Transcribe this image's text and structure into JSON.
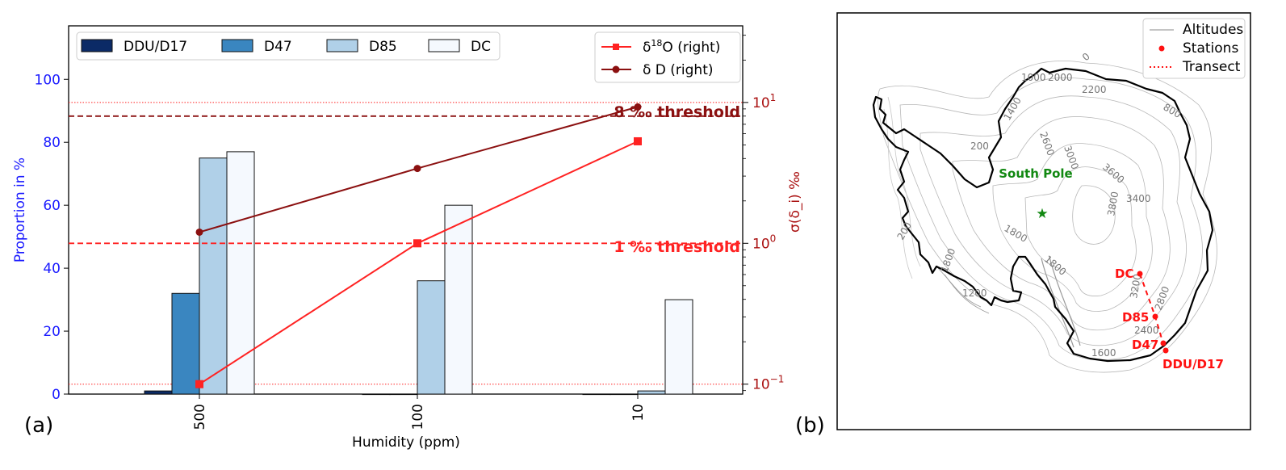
{
  "panel_labels": {
    "a": "(a)",
    "b": "(b)"
  },
  "colors": {
    "left_axis": "#1a1aff",
    "right_axis": "#aa1111",
    "d18o": "#ff2222",
    "dd": "#8b1010",
    "threshold8": "#8b1010",
    "threshold1": "#ff2222",
    "south_pole": "#118811",
    "stations": "#ff1111"
  },
  "chart_data": [
    {
      "type": "bar",
      "xlabel": "Humidity (ppm)",
      "ylabel": "Proportion in %",
      "ylim": [
        0,
        117
      ],
      "yticks": [
        "0",
        "20",
        "40",
        "60",
        "80",
        "100"
      ],
      "categories": [
        "500",
        "100",
        "10"
      ],
      "series": [
        {
          "name": "DDU/D17",
          "color": "#0b2a66",
          "values": [
            1,
            0,
            0
          ]
        },
        {
          "name": "D47",
          "color": "#3a86c0",
          "values": [
            32,
            0,
            0
          ]
        },
        {
          "name": "D85",
          "color": "#b0d0e8",
          "values": [
            75,
            36,
            1
          ]
        },
        {
          "name": "DC",
          "color": "#f5f9fe",
          "values": [
            77,
            60,
            30
          ]
        }
      ],
      "legend_position": "top-left",
      "secondary": {
        "type": "line",
        "scale": "log",
        "ylabel": "σ(δ_i)  ‰",
        "ylim": [
          0.085,
          35
        ],
        "yticks": [
          "10^-1",
          "10^0",
          "10^1"
        ],
        "series": [
          {
            "name": "δ18O (right)",
            "marker": "square",
            "values": [
              0.1,
              1.0,
              5.3
            ]
          },
          {
            "name": "δ D (right)",
            "marker": "circle",
            "values": [
              1.2,
              3.4,
              9.3
            ]
          }
        ],
        "thresholds": [
          {
            "label": "8 ‰ threshold",
            "value": 8
          },
          {
            "label": "1 ‰ threshold",
            "value": 1
          }
        ],
        "dotted_reference_lines": [
          10,
          0.1
        ],
        "legend_position": "top-right"
      }
    }
  ],
  "map": {
    "legend": [
      "Altitudes",
      "Stations",
      "Transect"
    ],
    "south_pole_label": "South Pole",
    "stations": [
      {
        "name": "DC"
      },
      {
        "name": "D85"
      },
      {
        "name": "D47"
      },
      {
        "name": "DDU/D17"
      }
    ],
    "contour_labels": [
      "0",
      "1000",
      "2000",
      "2200",
      "800",
      "1400",
      "2600",
      "3000",
      "3600",
      "3400",
      "3800",
      "200",
      "1800",
      "1800",
      "1800",
      "1200",
      "3200",
      "2800",
      "2400",
      "1600",
      "200"
    ]
  }
}
